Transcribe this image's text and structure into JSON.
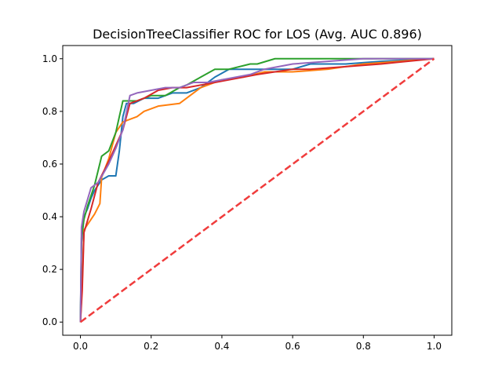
{
  "chart_data": {
    "type": "line",
    "title": "DecisionTreeClassifier ROC for LOS (Avg. AUC 0.896)",
    "xlabel": "",
    "ylabel": "",
    "xlim": [
      -0.05,
      1.05
    ],
    "ylim": [
      -0.05,
      1.05
    ],
    "x_ticks": [
      0.0,
      0.2,
      0.4,
      0.6,
      0.8,
      1.0
    ],
    "y_ticks": [
      0.0,
      0.2,
      0.4,
      0.6,
      0.8,
      1.0
    ],
    "x_tick_labels": [
      "0.0",
      "0.2",
      "0.4",
      "0.6",
      "0.8",
      "1.0"
    ],
    "y_tick_labels": [
      "0.0",
      "0.2",
      "0.4",
      "0.6",
      "0.8",
      "1.0"
    ],
    "grid": false,
    "legend": "none",
    "series": [
      {
        "color": "#1f77b4",
        "x": [
          0.0,
          0.003,
          0.01,
          0.02,
          0.03,
          0.04,
          0.06,
          0.08,
          0.1,
          0.11,
          0.12,
          0.13,
          0.15,
          0.18,
          0.22,
          0.26,
          0.3,
          0.34,
          0.38,
          0.42,
          0.46,
          0.5,
          0.55,
          0.6,
          0.65,
          0.75,
          0.85,
          1.0
        ],
        "y": [
          0.0,
          0.3,
          0.4,
          0.43,
          0.47,
          0.5,
          0.54,
          0.555,
          0.555,
          0.65,
          0.78,
          0.83,
          0.83,
          0.85,
          0.85,
          0.87,
          0.87,
          0.89,
          0.93,
          0.96,
          0.96,
          0.96,
          0.96,
          0.96,
          0.98,
          0.98,
          0.99,
          1.0
        ]
      },
      {
        "color": "#ff7f0e",
        "x": [
          0.0,
          0.005,
          0.01,
          0.02,
          0.04,
          0.055,
          0.06,
          0.08,
          0.1,
          0.12,
          0.16,
          0.18,
          0.22,
          0.28,
          0.34,
          0.4,
          0.46,
          0.52,
          0.6,
          0.7,
          0.8,
          1.0
        ],
        "y": [
          0.0,
          0.15,
          0.35,
          0.37,
          0.41,
          0.45,
          0.55,
          0.62,
          0.72,
          0.76,
          0.78,
          0.8,
          0.82,
          0.83,
          0.89,
          0.92,
          0.93,
          0.95,
          0.95,
          0.96,
          0.98,
          1.0
        ]
      },
      {
        "color": "#2ca02c",
        "x": [
          0.0,
          0.003,
          0.01,
          0.02,
          0.04,
          0.06,
          0.08,
          0.1,
          0.12,
          0.16,
          0.2,
          0.24,
          0.28,
          0.3,
          0.34,
          0.38,
          0.42,
          0.48,
          0.5,
          0.55,
          0.6,
          0.7,
          0.8,
          0.9,
          1.0
        ],
        "y": [
          0.0,
          0.32,
          0.39,
          0.44,
          0.52,
          0.63,
          0.65,
          0.72,
          0.84,
          0.84,
          0.86,
          0.86,
          0.89,
          0.9,
          0.93,
          0.96,
          0.96,
          0.98,
          0.98,
          1.0,
          1.0,
          1.0,
          1.0,
          1.0,
          1.0
        ]
      },
      {
        "color": "#d62728",
        "x": [
          0.0,
          0.005,
          0.01,
          0.03,
          0.05,
          0.08,
          0.1,
          0.12,
          0.14,
          0.18,
          0.22,
          0.26,
          0.3,
          0.34,
          0.38,
          0.42,
          0.46,
          0.5,
          0.55,
          0.6,
          0.65,
          0.75,
          0.85,
          1.0
        ],
        "y": [
          0.0,
          0.12,
          0.34,
          0.43,
          0.53,
          0.61,
          0.67,
          0.73,
          0.83,
          0.85,
          0.88,
          0.89,
          0.89,
          0.9,
          0.91,
          0.92,
          0.93,
          0.94,
          0.95,
          0.96,
          0.96,
          0.97,
          0.98,
          1.0
        ]
      },
      {
        "color": "#9467bd",
        "x": [
          0.0,
          0.003,
          0.01,
          0.03,
          0.05,
          0.08,
          0.1,
          0.12,
          0.14,
          0.16,
          0.2,
          0.24,
          0.26,
          0.28,
          0.3,
          0.32,
          0.36,
          0.4,
          0.44,
          0.48,
          0.52,
          0.56,
          0.6,
          0.7,
          0.8,
          1.0
        ],
        "y": [
          0.0,
          0.36,
          0.42,
          0.51,
          0.53,
          0.6,
          0.66,
          0.73,
          0.86,
          0.87,
          0.88,
          0.89,
          0.89,
          0.89,
          0.9,
          0.91,
          0.91,
          0.92,
          0.93,
          0.94,
          0.96,
          0.97,
          0.98,
          0.99,
          1.0,
          1.0
        ]
      }
    ],
    "reference_line": {
      "color": "#f03c3c",
      "style": "dashed",
      "x": [
        0.0,
        1.0
      ],
      "y": [
        0.0,
        1.0
      ]
    }
  }
}
